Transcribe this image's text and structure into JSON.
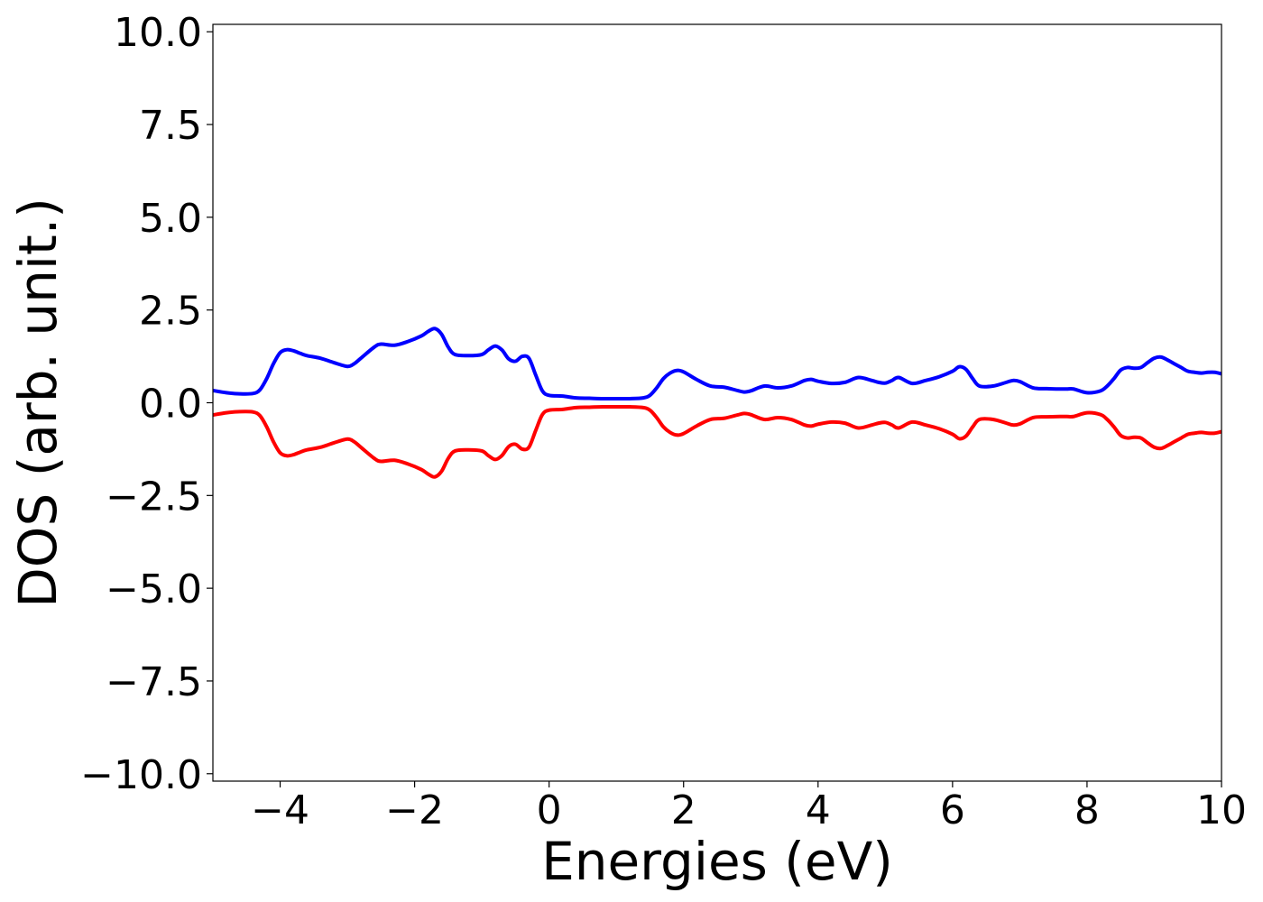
{
  "chart_data": {
    "type": "line",
    "xlabel": "Energies (eV)",
    "ylabel": "DOS (arb. unit.)",
    "xlim": [
      -5,
      10
    ],
    "ylim": [
      -10.2,
      10.2
    ],
    "grid": false,
    "xticks": [
      -4,
      -2,
      0,
      2,
      4,
      6,
      8,
      10
    ],
    "xtick_labels": [
      "−4",
      "−2",
      "0",
      "2",
      "4",
      "6",
      "8",
      "10"
    ],
    "yticks": [
      10.0,
      7.5,
      5.0,
      2.5,
      0.0,
      -2.5,
      -5.0,
      -7.5,
      -10.0
    ],
    "ytick_labels": [
      "10.0",
      "7.5",
      "5.0",
      "2.5",
      "0.0",
      "−2.5",
      "−5.0",
      "−7.5",
      "−10.0"
    ],
    "series": [
      {
        "color": "#0000ff",
        "x": [
          -5.0,
          -4.8,
          -4.6,
          -4.4,
          -4.3,
          -4.2,
          -4.1,
          -4.0,
          -3.9,
          -3.8,
          -3.7,
          -3.6,
          -3.4,
          -3.2,
          -3.0,
          -2.9,
          -2.8,
          -2.6,
          -2.5,
          -2.3,
          -2.1,
          -1.9,
          -1.8,
          -1.7,
          -1.6,
          -1.5,
          -1.4,
          -1.2,
          -1.0,
          -0.9,
          -0.8,
          -0.7,
          -0.6,
          -0.5,
          -0.4,
          -0.3,
          -0.2,
          -0.1,
          0.0,
          0.2,
          0.4,
          0.6,
          0.8,
          1.0,
          1.2,
          1.4,
          1.5,
          1.6,
          1.7,
          1.8,
          1.9,
          2.0,
          2.2,
          2.4,
          2.6,
          2.8,
          2.9,
          3.0,
          3.2,
          3.4,
          3.6,
          3.8,
          3.9,
          4.0,
          4.2,
          4.4,
          4.6,
          4.8,
          4.9,
          5.0,
          5.1,
          5.2,
          5.4,
          5.6,
          5.8,
          6.0,
          6.1,
          6.2,
          6.3,
          6.4,
          6.6,
          6.8,
          6.9,
          7.0,
          7.2,
          7.4,
          7.6,
          7.7,
          7.8,
          8.0,
          8.2,
          8.3,
          8.4,
          8.5,
          8.6,
          8.7,
          8.8,
          8.9,
          9.0,
          9.1,
          9.2,
          9.3,
          9.4,
          9.5,
          9.6,
          9.7,
          9.8,
          9.9,
          10.0
        ],
        "y": [
          0.33,
          0.27,
          0.24,
          0.25,
          0.35,
          0.65,
          1.05,
          1.35,
          1.43,
          1.4,
          1.33,
          1.27,
          1.2,
          1.08,
          0.98,
          1.05,
          1.2,
          1.5,
          1.58,
          1.55,
          1.65,
          1.8,
          1.92,
          2.0,
          1.85,
          1.5,
          1.3,
          1.27,
          1.3,
          1.43,
          1.53,
          1.42,
          1.18,
          1.12,
          1.25,
          1.2,
          0.75,
          0.32,
          0.2,
          0.18,
          0.13,
          0.12,
          0.11,
          0.11,
          0.11,
          0.13,
          0.2,
          0.4,
          0.65,
          0.8,
          0.87,
          0.83,
          0.62,
          0.45,
          0.42,
          0.33,
          0.29,
          0.32,
          0.45,
          0.4,
          0.45,
          0.6,
          0.63,
          0.58,
          0.52,
          0.55,
          0.68,
          0.6,
          0.55,
          0.53,
          0.6,
          0.68,
          0.52,
          0.6,
          0.7,
          0.85,
          0.97,
          0.9,
          0.65,
          0.45,
          0.45,
          0.55,
          0.6,
          0.57,
          0.4,
          0.38,
          0.37,
          0.37,
          0.37,
          0.27,
          0.32,
          0.45,
          0.65,
          0.88,
          0.95,
          0.93,
          0.95,
          1.08,
          1.2,
          1.23,
          1.15,
          1.05,
          0.95,
          0.85,
          0.82,
          0.8,
          0.82,
          0.82,
          0.78
        ]
      },
      {
        "color": "#ff0000",
        "x": [
          -5.0,
          -4.8,
          -4.6,
          -4.4,
          -4.3,
          -4.2,
          -4.1,
          -4.0,
          -3.9,
          -3.8,
          -3.7,
          -3.6,
          -3.4,
          -3.2,
          -3.0,
          -2.9,
          -2.8,
          -2.6,
          -2.5,
          -2.3,
          -2.1,
          -1.9,
          -1.8,
          -1.7,
          -1.6,
          -1.5,
          -1.4,
          -1.2,
          -1.0,
          -0.9,
          -0.8,
          -0.7,
          -0.6,
          -0.5,
          -0.4,
          -0.3,
          -0.2,
          -0.1,
          0.0,
          0.2,
          0.4,
          0.6,
          0.8,
          1.0,
          1.2,
          1.4,
          1.5,
          1.6,
          1.7,
          1.8,
          1.9,
          2.0,
          2.2,
          2.4,
          2.6,
          2.8,
          2.9,
          3.0,
          3.2,
          3.4,
          3.6,
          3.8,
          3.9,
          4.0,
          4.2,
          4.4,
          4.6,
          4.8,
          4.9,
          5.0,
          5.1,
          5.2,
          5.4,
          5.6,
          5.8,
          6.0,
          6.1,
          6.2,
          6.3,
          6.4,
          6.6,
          6.8,
          6.9,
          7.0,
          7.2,
          7.4,
          7.6,
          7.7,
          7.8,
          8.0,
          8.2,
          8.3,
          8.4,
          8.5,
          8.6,
          8.7,
          8.8,
          8.9,
          9.0,
          9.1,
          9.2,
          9.3,
          9.4,
          9.5,
          9.6,
          9.7,
          9.8,
          9.9,
          10.0
        ],
        "y": [
          -0.33,
          -0.27,
          -0.24,
          -0.25,
          -0.35,
          -0.65,
          -1.05,
          -1.35,
          -1.43,
          -1.4,
          -1.33,
          -1.27,
          -1.2,
          -1.08,
          -0.98,
          -1.05,
          -1.2,
          -1.5,
          -1.58,
          -1.55,
          -1.65,
          -1.8,
          -1.92,
          -2.0,
          -1.85,
          -1.5,
          -1.3,
          -1.27,
          -1.3,
          -1.43,
          -1.53,
          -1.42,
          -1.18,
          -1.12,
          -1.25,
          -1.2,
          -0.75,
          -0.32,
          -0.2,
          -0.18,
          -0.13,
          -0.12,
          -0.11,
          -0.11,
          -0.11,
          -0.13,
          -0.2,
          -0.4,
          -0.65,
          -0.8,
          -0.87,
          -0.83,
          -0.62,
          -0.45,
          -0.42,
          -0.33,
          -0.29,
          -0.32,
          -0.45,
          -0.4,
          -0.45,
          -0.6,
          -0.63,
          -0.58,
          -0.52,
          -0.55,
          -0.68,
          -0.6,
          -0.55,
          -0.53,
          -0.6,
          -0.68,
          -0.52,
          -0.6,
          -0.7,
          -0.85,
          -0.97,
          -0.9,
          -0.65,
          -0.45,
          -0.45,
          -0.55,
          -0.6,
          -0.57,
          -0.4,
          -0.38,
          -0.37,
          -0.37,
          -0.37,
          -0.27,
          -0.32,
          -0.45,
          -0.65,
          -0.88,
          -0.95,
          -0.93,
          -0.95,
          -1.08,
          -1.2,
          -1.23,
          -1.15,
          -1.05,
          -0.95,
          -0.85,
          -0.82,
          -0.8,
          -0.82,
          -0.82,
          -0.78
        ]
      }
    ]
  }
}
